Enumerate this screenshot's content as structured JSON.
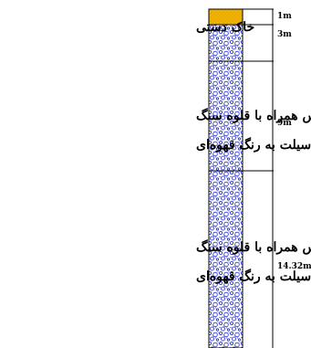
{
  "layers": [
    {
      "id": "fill",
      "label_lines": [
        "خاک دستی"
      ],
      "depth_label": "1m",
      "fill": "fill",
      "color": "#f2b400"
    },
    {
      "id": "gravel-1",
      "label_lines": [],
      "depth_label": "3m",
      "fill": "gravel"
    },
    {
      "id": "gravel-2",
      "label_lines": [
        "شن و ماس همراه با قلوه سنگ",
        "با کمی سیلت به رنگ قهوه‌ای"
      ],
      "depth_label": "9m",
      "fill": "gravel"
    },
    {
      "id": "gravel-3",
      "label_lines": [
        "شن و ماس همراه با قلوه سنگ",
        "و سیلت به رنگ قهوه‌ای"
      ],
      "depth_label": "14.32m",
      "fill": "gravel"
    }
  ],
  "colors": {
    "gravel_dots": "#1f2bd6",
    "fill": "#f2b400",
    "line": "#000000"
  }
}
